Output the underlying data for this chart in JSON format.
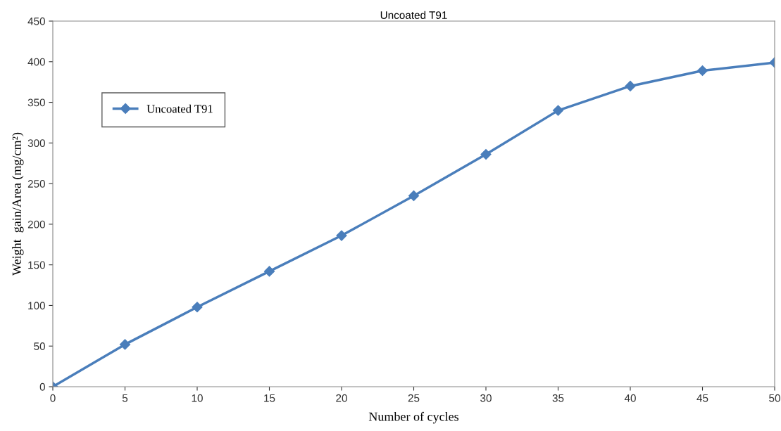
{
  "chart_data": {
    "type": "line",
    "title": "Uncoated T91",
    "xlabel": "Number of cycles",
    "ylabel": "Weight  gain/Area (mg/cm²)",
    "x": [
      0,
      5,
      10,
      15,
      20,
      25,
      30,
      35,
      40,
      45,
      50
    ],
    "series": [
      {
        "name": "Uncoated T91",
        "color": "#4a7ebb",
        "values": [
          0,
          52,
          98,
          142,
          186,
          235,
          286,
          340,
          370,
          389,
          399
        ]
      }
    ],
    "xlim": [
      0,
      50
    ],
    "xticks": [
      0,
      5,
      10,
      15,
      20,
      25,
      30,
      35,
      40,
      45,
      50
    ],
    "ylim": [
      0,
      450
    ],
    "yticks": [
      0,
      50,
      100,
      150,
      200,
      250,
      300,
      350,
      400,
      450
    ],
    "grid": false,
    "legend": "top left",
    "marker": "diamond",
    "line_style": "solid"
  }
}
